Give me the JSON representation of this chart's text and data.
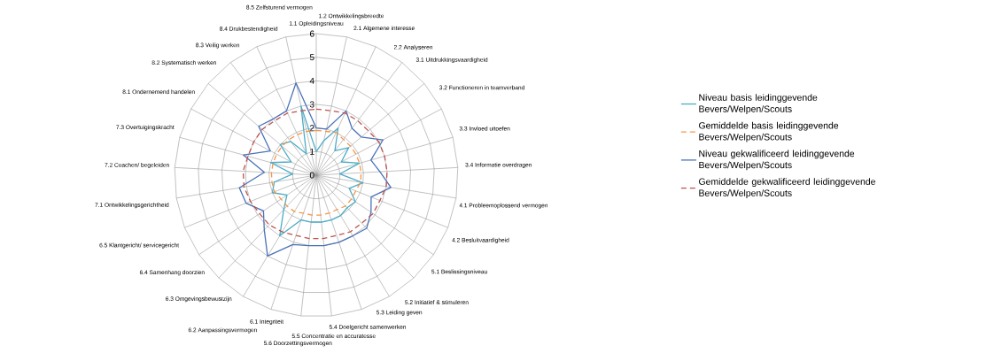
{
  "chart_data": {
    "type": "radar",
    "categories": [
      "1.1 Opleidingsniveau",
      "1.2 Ontwikkelingsbreedte",
      "2.1 Algemene interesse",
      "2.2 Analyseren",
      "3.1 Uitdrukkingsvaardigheid",
      "3.2 Functioneren in teamverband",
      "3.3 Invloed uitoefen",
      "3.4 Informatie overdragen",
      "4.1 Probleemoplossend vermogen",
      "4.2 Besluitvaardigheid",
      "5.1 Beslissingsniveau",
      "5.2 Initiatief & stimuleren",
      "5.3 Leiding geven",
      "5.4 Doelgericht samenwerken",
      "5.5 Concentratie en accuratesse",
      "5.6 Doorzettingsvermogen",
      "6.1 Integriteit",
      "6.2 Aanpassingsvermogen",
      "6.3 Omgevingsbewustzijn",
      "6.4 Samenhang doorzien",
      "6.5 Klantgericht/ servicegericht",
      "7.1 Ontwikkelingsgerichtheid",
      "7.2 Coachen/ begeleiden",
      "7.3 Overtuigingskracht",
      "8.1 Ondernemend handelen",
      "8.2 Systematisch werken",
      "8.3 Veilig werken",
      "8.4 Drukbestendigheid",
      "8.5 Zelfsturend vermogen"
    ],
    "series": [
      {
        "name": "Niveau basis leidinggevende Bevers/Welpen/Scouts",
        "color": "#4bacc6",
        "line_style": "solid",
        "values": [
          1,
          1.5,
          2.2,
          1.3,
          1.8,
          1.2,
          1.9,
          1,
          2,
          1.5,
          2,
          1.9,
          2,
          2,
          2,
          2,
          2,
          3,
          2,
          1.5,
          2,
          1.8,
          1,
          2,
          1.2,
          2,
          1.8,
          1,
          3
        ]
      },
      {
        "name": "Gemiddelde basis leidinggevende Bevers/Welpen/Scouts",
        "color": "#f79646",
        "line_style": "dashed",
        "values": [
          1.9,
          1.9,
          2,
          1.9,
          1.9,
          1.9,
          1.9,
          1.9,
          1.9,
          1.8,
          1.8,
          1.8,
          1.7,
          1.7,
          1.7,
          1.7,
          1.7,
          1.8,
          1.8,
          1.8,
          1.9,
          1.9,
          1.9,
          1.9,
          1.9,
          1.9,
          1.9,
          1.9,
          1.9
        ]
      },
      {
        "name": "Niveau gekwalificeerd leidinggevende Bevers/Welpen/Scouts",
        "color": "#4a72b8",
        "line_style": "solid",
        "values": [
          2,
          2,
          3,
          2.5,
          2.5,
          3.2,
          2.4,
          2.7,
          3.2,
          2.5,
          2.8,
          3.1,
          3,
          3,
          3,
          3,
          3.1,
          4,
          3.2,
          2.7,
          3.2,
          3.3,
          2.2,
          3.2,
          2.2,
          3.2,
          3,
          3,
          4
        ]
      },
      {
        "name": "Gemiddelde gekwalificeerd leidinggevende Bevers/Welpen/Scouts",
        "color": "#c0504d",
        "line_style": "dashed",
        "values": [
          2.8,
          2.8,
          2.9,
          2.9,
          2.9,
          3,
          3,
          3,
          3,
          2.9,
          2.9,
          2.8,
          2.8,
          2.7,
          2.7,
          2.7,
          2.7,
          2.8,
          2.9,
          2.9,
          3,
          3.1,
          3.1,
          3,
          3,
          3,
          2.9,
          2.9,
          2.8
        ]
      }
    ],
    "ylim": [
      0,
      6
    ],
    "yticks": [
      0,
      1,
      2,
      3,
      4,
      5,
      6
    ],
    "grid": true,
    "legend": "right"
  }
}
